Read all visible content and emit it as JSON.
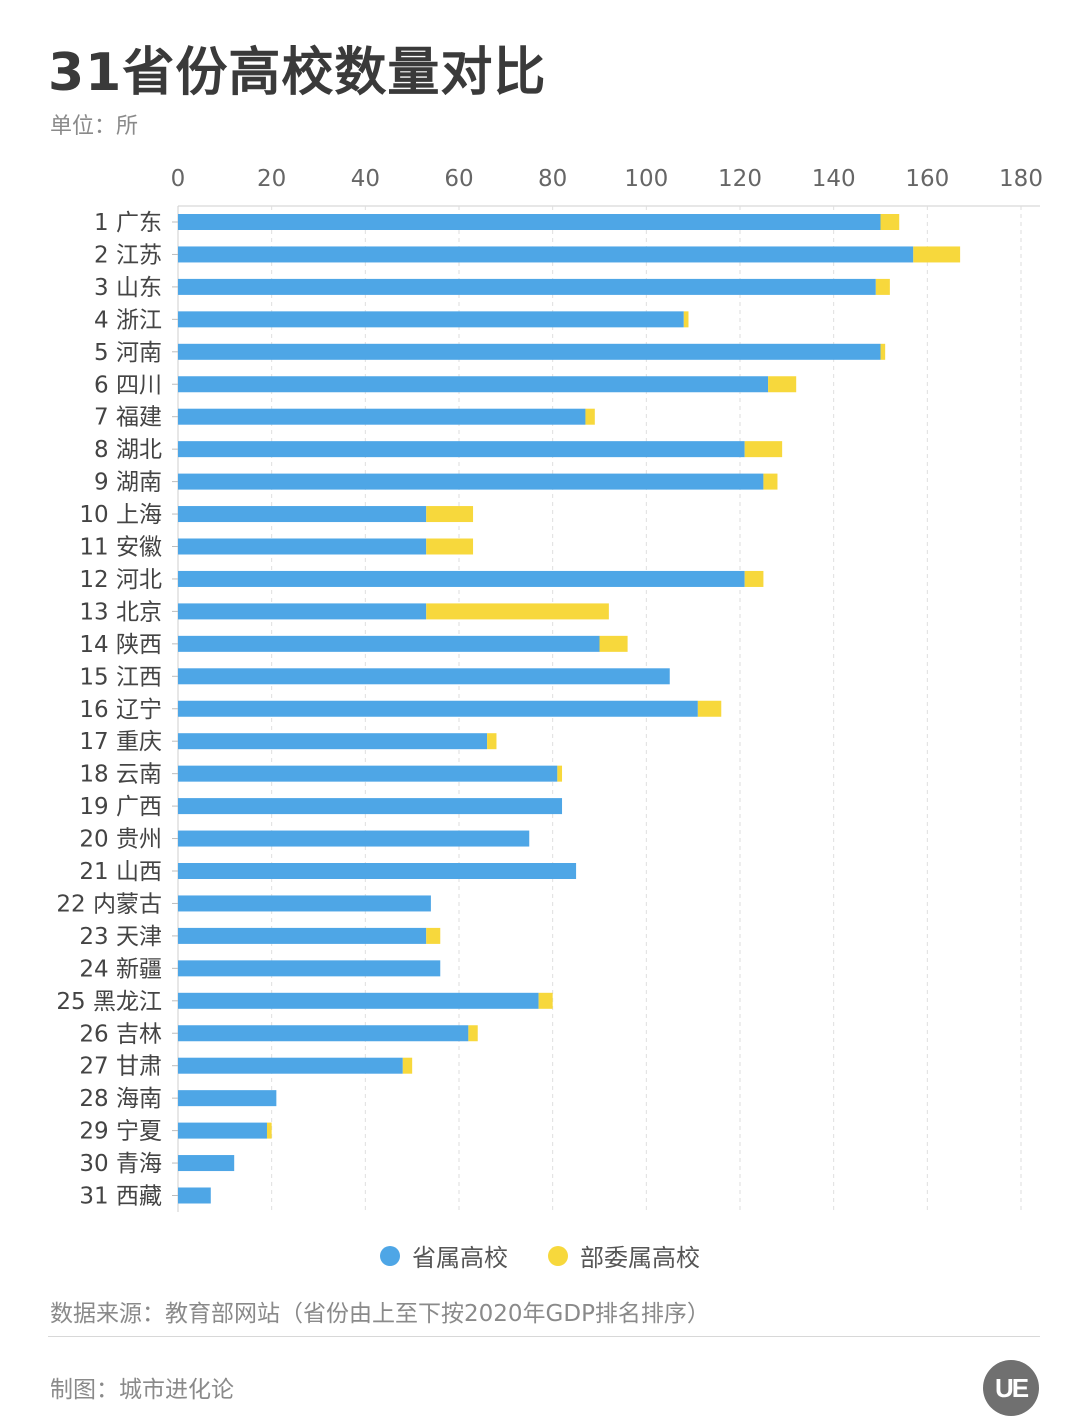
{
  "header": {
    "title": "31省份高校数量对比",
    "unit": "单位：所"
  },
  "chart_data": {
    "type": "bar",
    "orientation": "horizontal",
    "stacked": true,
    "xlim": [
      0,
      180
    ],
    "xticks": [
      "0",
      "20",
      "40",
      "60",
      "80",
      "100",
      "120",
      "140",
      "160",
      "180"
    ],
    "grid": "vertical-dashed",
    "categories": [
      "1 广东",
      "2 江苏",
      "3 山东",
      "4 浙江",
      "5 河南",
      "6 四川",
      "7 福建",
      "8 湖北",
      "9 湖南",
      "10 上海",
      "11 安徽",
      "12 河北",
      "13 北京",
      "14 陕西",
      "15 江西",
      "16 辽宁",
      "17 重庆",
      "18 云南",
      "19 广西",
      "20 贵州",
      "21 山西",
      "22 内蒙古",
      "23 天津",
      "24 新疆",
      "25 黑龙江",
      "26 吉林",
      "27 甘肃",
      "28 海南",
      "29 宁夏",
      "30 青海",
      "31 西藏"
    ],
    "series": [
      {
        "name": "省属高校",
        "color": "#4ea6e6",
        "values": [
          150,
          157,
          149,
          108,
          150,
          126,
          87,
          121,
          125,
          53,
          53,
          121,
          53,
          90,
          105,
          111,
          66,
          81,
          82,
          75,
          85,
          54,
          53,
          56,
          77,
          62,
          48,
          21,
          19,
          12,
          7
        ]
      },
      {
        "name": "部委属高校",
        "color": "#f7d83c",
        "values": [
          4,
          10,
          3,
          1,
          1,
          6,
          2,
          8,
          3,
          10,
          10,
          4,
          39,
          6,
          0,
          5,
          2,
          1,
          0,
          0,
          0,
          0,
          3,
          0,
          3,
          2,
          2,
          0,
          1,
          0,
          0
        ]
      }
    ],
    "legend": [
      "省属高校",
      "部委属高校"
    ],
    "legend_position": "bottom-center"
  },
  "footer": {
    "source": "数据来源：教育部网站（省份由上至下按2020年GDP排名排序）",
    "credit": "制图：城市进化论",
    "logo_text": "UE"
  }
}
